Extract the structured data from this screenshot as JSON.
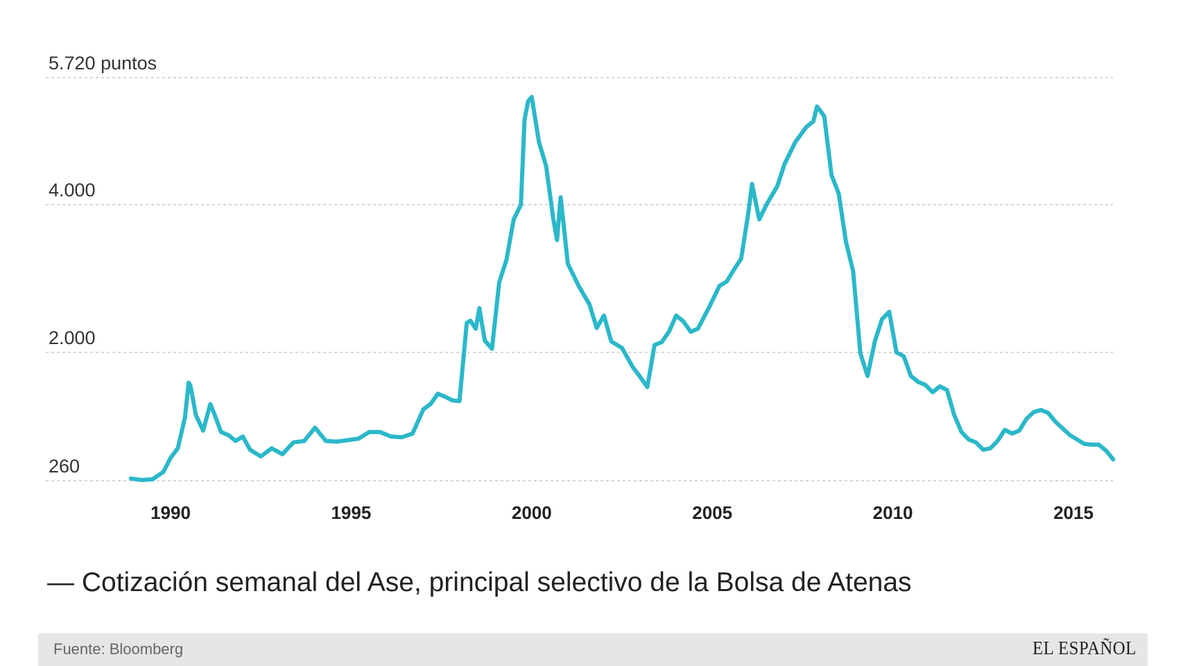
{
  "chart_data": {
    "type": "line",
    "title": "",
    "xlabel": "",
    "ylabel": "",
    "y_ticks": [
      {
        "value": 260,
        "label": "260"
      },
      {
        "value": 2000,
        "label": "2.000"
      },
      {
        "value": 4000,
        "label": "4.000"
      },
      {
        "value": 5720,
        "label": "5.720 puntos"
      }
    ],
    "x_ticks": [
      1990,
      1995,
      2000,
      2005,
      2010,
      2015
    ],
    "xlim": [
      1988.8,
      2016.2
    ],
    "ylim": [
      260,
      5720
    ],
    "grid": true,
    "line_color": "#2bb8c9",
    "series": [
      {
        "name": "Cotización semanal del Ase, principal selectivo de la Bolsa de Atenas",
        "x": [
          1988.9,
          1989.2,
          1989.5,
          1989.8,
          1990.0,
          1990.2,
          1990.4,
          1990.5,
          1990.55,
          1990.7,
          1990.9,
          1991.1,
          1991.2,
          1991.4,
          1991.6,
          1991.8,
          1992.0,
          1992.2,
          1992.5,
          1992.8,
          1993.1,
          1993.4,
          1993.7,
          1994.0,
          1994.3,
          1994.6,
          1994.9,
          1995.2,
          1995.5,
          1995.8,
          1996.1,
          1996.4,
          1996.7,
          1997.0,
          1997.2,
          1997.4,
          1997.6,
          1997.8,
          1998.0,
          1998.2,
          1998.3,
          1998.45,
          1998.55,
          1998.7,
          1998.9,
          1999.1,
          1999.3,
          1999.5,
          1999.7,
          1999.8,
          1999.9,
          2000.0,
          2000.2,
          2000.4,
          2000.6,
          2000.7,
          2000.8,
          2001.0,
          2001.3,
          2001.6,
          2001.8,
          2002.0,
          2002.2,
          2002.5,
          2002.8,
          2003.0,
          2003.2,
          2003.4,
          2003.6,
          2003.8,
          2004.0,
          2004.2,
          2004.4,
          2004.6,
          2004.9,
          2005.2,
          2005.4,
          2005.6,
          2005.8,
          2006.0,
          2006.1,
          2006.3,
          2006.5,
          2006.8,
          2007.0,
          2007.3,
          2007.6,
          2007.8,
          2007.9,
          2008.1,
          2008.3,
          2008.5,
          2008.7,
          2008.9,
          2009.1,
          2009.3,
          2009.5,
          2009.7,
          2009.9,
          2010.1,
          2010.3,
          2010.5,
          2010.7,
          2010.9,
          2011.1,
          2011.3,
          2011.5,
          2011.7,
          2011.9,
          2012.1,
          2012.3,
          2012.5,
          2012.7,
          2012.9,
          2013.1,
          2013.3,
          2013.5,
          2013.7,
          2013.9,
          2014.1,
          2014.3,
          2014.5,
          2014.7,
          2014.9,
          2015.1,
          2015.3,
          2015.5,
          2015.7,
          2015.9,
          2016.1
        ],
        "values": [
          290,
          270,
          280,
          380,
          570,
          700,
          1120,
          1590,
          1550,
          1150,
          940,
          1300,
          1180,
          920,
          880,
          800,
          860,
          680,
          590,
          700,
          620,
          780,
          800,
          980,
          800,
          790,
          810,
          830,
          920,
          920,
          860,
          850,
          900,
          1230,
          1300,
          1440,
          1400,
          1350,
          1340,
          2400,
          2430,
          2320,
          2600,
          2160,
          2050,
          2950,
          3250,
          3800,
          4000,
          5150,
          5400,
          5460,
          4850,
          4520,
          3800,
          3520,
          4100,
          3200,
          2900,
          2650,
          2330,
          2500,
          2150,
          2060,
          1800,
          1670,
          1530,
          2100,
          2140,
          2280,
          2500,
          2420,
          2280,
          2320,
          2600,
          2900,
          2960,
          3120,
          3270,
          3900,
          4280,
          3800,
          4000,
          4250,
          4550,
          4850,
          5050,
          5130,
          5330,
          5200,
          4400,
          4150,
          3500,
          3100,
          1990,
          1680,
          2150,
          2450,
          2550,
          2000,
          1950,
          1680,
          1600,
          1560,
          1460,
          1540,
          1490,
          1150,
          920,
          820,
          780,
          680,
          700,
          800,
          950,
          900,
          940,
          1100,
          1190,
          1220,
          1180,
          1060,
          970,
          880,
          820,
          760,
          750,
          750,
          670,
          550
        ]
      }
    ]
  },
  "legend_text": "— Cotización semanal del Ase, principal selectivo de la Bolsa de Atenas",
  "footer": {
    "source": "Fuente: Bloomberg",
    "brand": "EL ESPAÑOL"
  }
}
